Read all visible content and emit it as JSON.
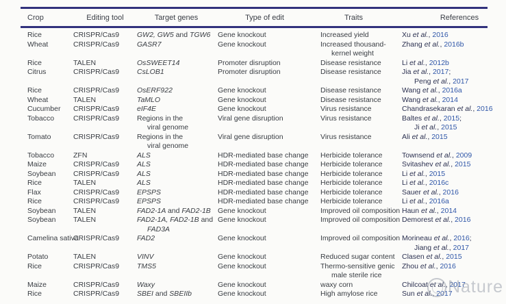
{
  "watermark": {
    "label": "Nature"
  },
  "colors": {
    "rule": "#31317c",
    "link_year": "#2f56a8",
    "body_text": "#383c42"
  },
  "table": {
    "columns": [
      {
        "key": "crop",
        "label": "Crop"
      },
      {
        "key": "tool",
        "label": "Editing tool"
      },
      {
        "key": "genes",
        "label": "Target genes"
      },
      {
        "key": "edit",
        "label": "Type of edit"
      },
      {
        "key": "traits",
        "label": "Traits"
      },
      {
        "key": "refs",
        "label": "References"
      }
    ],
    "rows": [
      {
        "crop": "Rice",
        "tool": "CRISPR/Cas9",
        "genes": [
          "GW2, GW5 and TGW6"
        ],
        "genes_italic": true,
        "edit": "Gene knockout",
        "traits": [
          "Increased yield"
        ],
        "refs": [
          "Xu et al., 2016"
        ]
      },
      {
        "crop": "Wheat",
        "tool": "CRISPR/Cas9",
        "genes": [
          "GASR7"
        ],
        "genes_italic": true,
        "edit": "Gene knockout",
        "traits": [
          "Increased thousand-",
          "kernel weight"
        ],
        "refs": [
          "Zhang et al., 2016b"
        ]
      },
      {
        "crop": "Rice",
        "tool": "TALEN",
        "genes": [
          "OsSWEET14"
        ],
        "genes_italic": true,
        "edit": "Promoter disruption",
        "traits": [
          "Disease resistance"
        ],
        "refs": [
          "Li et al., 2012b"
        ]
      },
      {
        "crop": "Citrus",
        "tool": "CRISPR/Cas9",
        "genes": [
          "CsLOB1"
        ],
        "genes_italic": true,
        "edit": "Promoter disruption",
        "traits": [
          "Disease resistance"
        ],
        "refs": [
          "Jia et al., 2017;",
          "Peng et al., 2017"
        ]
      },
      {
        "crop": "Rice",
        "tool": "CRISPR/Cas9",
        "genes": [
          "OsERF922"
        ],
        "genes_italic": true,
        "edit": "Gene knockout",
        "traits": [
          "Disease resistance"
        ],
        "refs": [
          "Wang et al., 2016a"
        ]
      },
      {
        "crop": "Wheat",
        "tool": "TALEN",
        "genes": [
          "TaMLO"
        ],
        "genes_italic": true,
        "edit": "Gene knockout",
        "traits": [
          "Disease resistance"
        ],
        "refs": [
          "Wang et al., 2014"
        ]
      },
      {
        "crop": "Cucumber",
        "tool": "CRISPR/Cas9",
        "genes": [
          "eIF4E"
        ],
        "genes_italic": true,
        "edit": "Gene knockout",
        "traits": [
          "Virus resistance"
        ],
        "refs": [
          "Chandrasekaran et al., 2016"
        ]
      },
      {
        "crop": "Tobacco",
        "tool": "CRISPR/Cas9",
        "genes": [
          "Regions in the",
          "viral genome"
        ],
        "genes_italic": false,
        "edit": "Viral gene disruption",
        "traits": [
          "Virus resistance"
        ],
        "refs": [
          "Baltes et al., 2015;",
          "Ji et al., 2015"
        ]
      },
      {
        "crop": "Tomato",
        "tool": "CRISPR/Cas9",
        "genes": [
          "Regions in the",
          "viral genome"
        ],
        "genes_italic": false,
        "edit": "Viral gene disruption",
        "traits": [
          "Virus resistance"
        ],
        "refs": [
          "Ali et al., 2015"
        ]
      },
      {
        "crop": "Tobacco",
        "tool": "ZFN",
        "genes": [
          "ALS"
        ],
        "genes_italic": true,
        "edit": "HDR-mediated base change",
        "traits": [
          "Herbicide tolerance"
        ],
        "refs": [
          "Townsend et al., 2009"
        ]
      },
      {
        "crop": "Maize",
        "tool": "CRISPR/Cas9",
        "genes": [
          "ALS"
        ],
        "genes_italic": true,
        "edit": "HDR-mediated base change",
        "traits": [
          "Herbicide tolerance"
        ],
        "refs": [
          "Svitashev et al., 2015"
        ]
      },
      {
        "crop": "Soybean",
        "tool": "CRISPR/Cas9",
        "genes": [
          "ALS"
        ],
        "genes_italic": true,
        "edit": "HDR-mediated base change",
        "traits": [
          "Herbicide tolerance"
        ],
        "refs": [
          "Li et al., 2015"
        ]
      },
      {
        "crop": "Rice",
        "tool": "TALEN",
        "genes": [
          "ALS"
        ],
        "genes_italic": true,
        "edit": "HDR-mediated base change",
        "traits": [
          "Herbicide tolerance"
        ],
        "refs": [
          "Li et al., 2016c"
        ]
      },
      {
        "crop": "Flax",
        "tool": "CRISPR/Cas9",
        "genes": [
          "EPSPS"
        ],
        "genes_italic": true,
        "edit": "HDR-mediated base change",
        "traits": [
          "Herbicide tolerance"
        ],
        "refs": [
          "Sauer et al., 2016"
        ]
      },
      {
        "crop": "Rice",
        "tool": "CRISPR/Cas9",
        "genes": [
          "EPSPS"
        ],
        "genes_italic": true,
        "edit": "HDR-mediated base change",
        "traits": [
          "Herbicide tolerance"
        ],
        "refs": [
          "Li et al., 2016a"
        ]
      },
      {
        "crop": "Soybean",
        "tool": "TALEN",
        "genes": [
          "FAD2-1A and FAD2-1B"
        ],
        "genes_italic": true,
        "edit": "Gene knockout",
        "traits": [
          "Improved oil composition"
        ],
        "refs": [
          "Haun et al., 2014"
        ]
      },
      {
        "crop": "Soybean",
        "tool": "TALEN",
        "genes": [
          "FAD2-1A, FAD2-1B and",
          "FAD3A"
        ],
        "genes_italic": true,
        "edit": "Gene knockout",
        "traits": [
          "Improved oil composition"
        ],
        "refs": [
          "Demorest et al., 2016"
        ]
      },
      {
        "crop": "Camelina sativa",
        "tool": "CRISPR/Cas9",
        "genes": [
          "FAD2"
        ],
        "genes_italic": true,
        "edit": "Gene knockout",
        "traits": [
          "Improved oil composition"
        ],
        "refs": [
          "Morineau et al., 2016;",
          "Jiang et al., 2017"
        ]
      },
      {
        "crop": "Potato",
        "tool": "TALEN",
        "genes": [
          "VINV"
        ],
        "genes_italic": true,
        "edit": "Gene knockout",
        "traits": [
          "Reduced sugar content"
        ],
        "refs": [
          "Clasen et al., 2015"
        ]
      },
      {
        "crop": "Rice",
        "tool": "CRISPR/Cas9",
        "genes": [
          "TMS5"
        ],
        "genes_italic": true,
        "edit": "Gene knockout",
        "traits": [
          "Thermo-sensitive genic",
          "male sterile rice"
        ],
        "refs": [
          "Zhou et al., 2016"
        ]
      },
      {
        "crop": "Maize",
        "tool": "CRISPR/Cas9",
        "genes": [
          "Waxy"
        ],
        "genes_italic": true,
        "edit": "Gene knockout",
        "traits": [
          "waxy corn"
        ],
        "refs": [
          "Chilcoat et al., 2017"
        ]
      },
      {
        "crop": "Rice",
        "tool": "CRISPR/Cas9",
        "genes": [
          "SBEI and SBEIIb"
        ],
        "genes_italic": true,
        "edit": "Gene knockout",
        "traits": [
          "High amylose rice"
        ],
        "refs": [
          "Sun et al., 2017"
        ]
      }
    ]
  }
}
